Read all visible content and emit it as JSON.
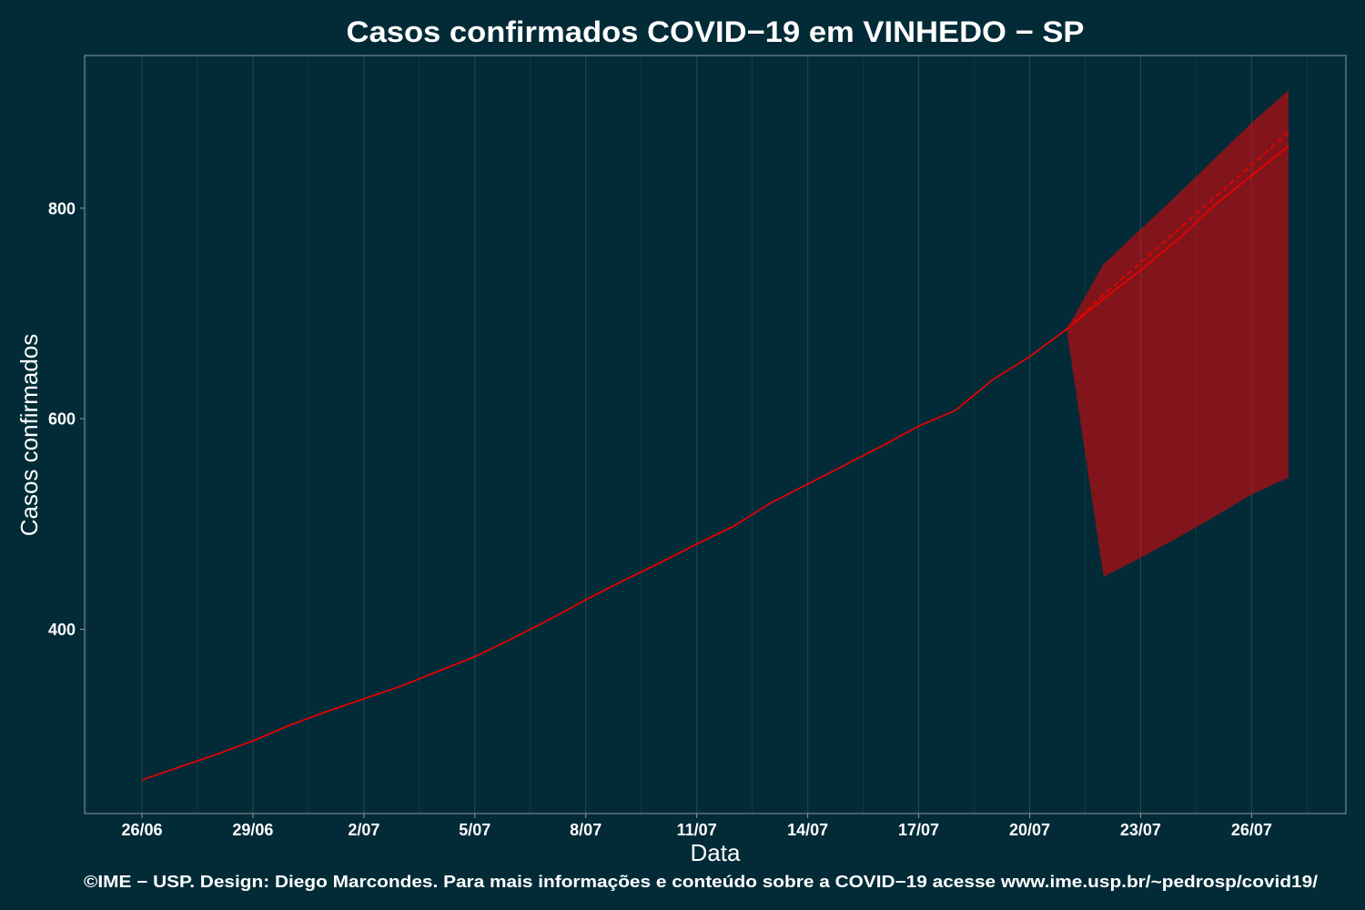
{
  "chart_data": {
    "type": "line",
    "title": "Casos confirmados COVID−19 em VINHEDO − SP",
    "xlabel": "Data",
    "ylabel": "Casos confirmados",
    "caption": "©IME − USP. Design: Diego Marcondes. Para mais informações e conteúdo sobre a COVID−19 acesse www.ime.usp.br/~pedrosp/covid19/",
    "x_ticks": [
      "26/06",
      "29/06",
      "2/07",
      "5/07",
      "8/07",
      "11/07",
      "14/07",
      "17/07",
      "20/07",
      "23/07",
      "26/07"
    ],
    "y_ticks": [
      400,
      600,
      800
    ],
    "xlim": [
      "26/06",
      "27/07"
    ],
    "ylim": [
      225,
      945
    ],
    "grid": {
      "vertical": true,
      "horizontal": false
    },
    "colors": {
      "background": "#022b37",
      "line": "#ee0000",
      "band": "#ff0000",
      "panel_border": "#8c9a9c",
      "grid": "#1e4450",
      "text": "#ffffff"
    },
    "series": [
      {
        "dashed": false,
        "x": [
          "26/06",
          "27/06",
          "28/06",
          "29/06",
          "30/06",
          "1/07",
          "2/07",
          "3/07",
          "4/07",
          "5/07",
          "6/07",
          "7/07",
          "8/07",
          "9/07",
          "10/07",
          "11/07",
          "12/07",
          "13/07",
          "14/07",
          "15/07",
          "16/07",
          "17/07",
          "18/07",
          "19/07",
          "20/07",
          "21/07",
          "22/07",
          "23/07",
          "24/07",
          "25/07",
          "26/07",
          "27/07"
        ],
        "y": [
          257,
          269,
          281,
          294,
          309,
          322,
          334,
          346,
          360,
          374,
          391,
          409,
          428,
          446,
          463,
          481,
          498,
          520,
          538,
          556,
          574,
          593,
          608,
          637,
          659,
          685,
          714,
          741,
          770,
          803,
          831,
          859
        ]
      },
      {
        "dashed": true,
        "x": [
          "21/07",
          "22/07",
          "23/07",
          "24/07",
          "25/07",
          "26/07",
          "27/07"
        ],
        "y": [
          685,
          718,
          748,
          779,
          810,
          841,
          872
        ]
      }
    ],
    "band": {
      "x": [
        "21/07",
        "22/07",
        "23/07",
        "24/07",
        "25/07",
        "26/07",
        "27/07"
      ],
      "lower": [
        685,
        450,
        468,
        487,
        507,
        528,
        544
      ],
      "upper": [
        685,
        747,
        780,
        813,
        847,
        881,
        912
      ]
    }
  }
}
